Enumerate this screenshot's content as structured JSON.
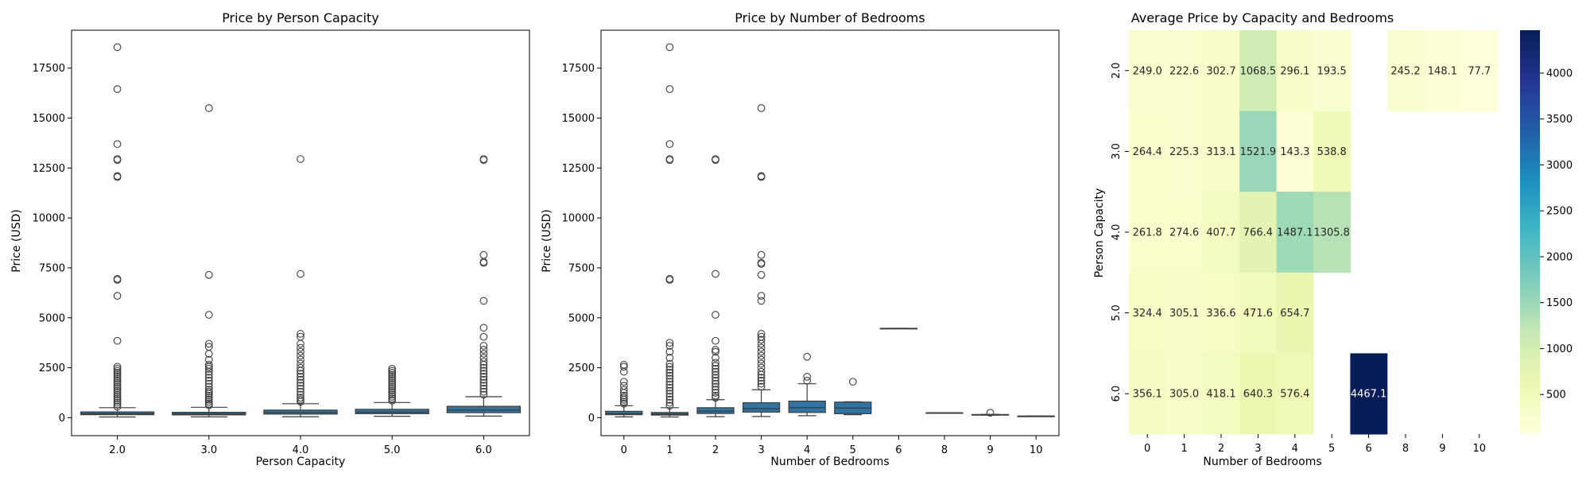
{
  "chart_data": [
    {
      "type": "box",
      "title": "Price by Person Capacity",
      "xlabel": "Person Capacity",
      "ylabel": "Price (USD)",
      "ylim": [
        -900,
        19400
      ],
      "yticks": [
        0,
        2500,
        5000,
        7500,
        10000,
        12500,
        15000,
        17500
      ],
      "categories": [
        "2.0",
        "3.0",
        "4.0",
        "5.0",
        "6.0"
      ],
      "box_color": "#3274a1",
      "boxes": [
        {
          "q1": 150,
          "median": 200,
          "q3": 290,
          "whisker_low": 35,
          "whisker_high": 500,
          "outliers": [
            18550,
            16450,
            13700,
            12950,
            12900,
            12100,
            12050,
            6950,
            6900,
            6100,
            3850,
            2550,
            2450,
            2350,
            2250,
            2150,
            2050,
            1950,
            1850,
            1750,
            1650,
            1550,
            1450,
            1350,
            1250,
            1150,
            1050,
            950,
            850,
            750,
            650,
            550
          ]
        },
        {
          "q1": 140,
          "median": 190,
          "q3": 270,
          "whisker_low": 40,
          "whisker_high": 520,
          "outliers": [
            15500,
            7150,
            5150,
            3700,
            3550,
            3200,
            2900,
            2650,
            2550,
            2450,
            2300,
            2150,
            2000,
            1850,
            1700,
            1550,
            1400,
            1300,
            1200,
            1100,
            1000,
            900,
            800,
            700,
            620
          ]
        },
        {
          "q1": 180,
          "median": 260,
          "q3": 380,
          "whisker_low": 45,
          "whisker_high": 700,
          "outliers": [
            12950,
            7200,
            4200,
            4050,
            3700,
            3500,
            3300,
            3100,
            2900,
            2700,
            2500,
            2350,
            2200,
            2050,
            1900,
            1750,
            1600,
            1450,
            1300,
            1150,
            1000,
            900,
            800
          ]
        },
        {
          "q1": 200,
          "median": 280,
          "q3": 420,
          "whisker_low": 70,
          "whisker_high": 760,
          "outliers": [
            2450,
            2350,
            2250,
            2150,
            2050,
            1950,
            1850,
            1750,
            1650,
            1550,
            1450,
            1350,
            1250,
            1150,
            1050,
            950,
            850
          ]
        },
        {
          "q1": 250,
          "median": 380,
          "q3": 570,
          "whisker_low": 80,
          "whisker_high": 1050,
          "outliers": [
            12950,
            12900,
            8150,
            7800,
            7750,
            5850,
            4500,
            4050,
            3600,
            3400,
            3200,
            3000,
            2800,
            2650,
            2500,
            2350,
            2200,
            2050,
            1900,
            1750,
            1600,
            1450,
            1300,
            1150
          ]
        }
      ]
    },
    {
      "type": "box",
      "title": "Price by Number of Bedrooms",
      "xlabel": "Number of Bedrooms",
      "ylabel": "Price (USD)",
      "ylim": [
        -900,
        19400
      ],
      "yticks": [
        0,
        2500,
        5000,
        7500,
        10000,
        12500,
        15000,
        17500
      ],
      "categories": [
        "0",
        "1",
        "2",
        "3",
        "4",
        "5",
        "6",
        "8",
        "9",
        "10"
      ],
      "box_color": "#3274a1",
      "boxes": [
        {
          "q1": 150,
          "median": 200,
          "q3": 320,
          "whisker_low": 40,
          "whisker_high": 600,
          "outliers": [
            2650,
            2550,
            2300,
            1800,
            1600,
            1400,
            1250,
            1100,
            1000,
            900,
            800,
            700
          ]
        },
        {
          "q1": 130,
          "median": 180,
          "q3": 260,
          "whisker_low": 35,
          "whisker_high": 500,
          "outliers": [
            18550,
            16450,
            13700,
            12950,
            12900,
            6950,
            6900,
            3750,
            3600,
            3300,
            3000,
            2700,
            2550,
            2400,
            2250,
            2100,
            1950,
            1800,
            1650,
            1500,
            1350,
            1200,
            1050,
            900,
            750,
            600
          ]
        },
        {
          "q1": 210,
          "median": 320,
          "q3": 500,
          "whisker_low": 50,
          "whisker_high": 900,
          "outliers": [
            12950,
            12900,
            7200,
            5150,
            3850,
            3400,
            3300,
            3000,
            2750,
            2600,
            2450,
            2300,
            2150,
            2000,
            1850,
            1700,
            1550,
            1400,
            1250,
            1100,
            1000
          ]
        },
        {
          "q1": 280,
          "median": 450,
          "q3": 750,
          "whisker_low": 60,
          "whisker_high": 1400,
          "outliers": [
            15500,
            12100,
            12050,
            8150,
            7750,
            7700,
            7150,
            6100,
            5850,
            4200,
            4050,
            3900,
            3700,
            3500,
            3300,
            3100,
            2900,
            2700,
            2500,
            2300,
            2150,
            2000,
            1850,
            1700,
            1550
          ]
        },
        {
          "q1": 260,
          "median": 500,
          "q3": 830,
          "whisker_low": 100,
          "whisker_high": 1700,
          "outliers": [
            3050,
            2050,
            1850
          ]
        },
        {
          "q1": 200,
          "median": 480,
          "q3": 780,
          "whisker_low": 150,
          "whisker_high": 800,
          "outliers": [
            1800
          ]
        },
        {
          "q1": 4460,
          "median": 4467,
          "q3": 4475,
          "whisker_low": 4460,
          "whisker_high": 4475,
          "outliers": []
        },
        {
          "q1": 240,
          "median": 245,
          "q3": 250,
          "whisker_low": 240,
          "whisker_high": 250,
          "outliers": []
        },
        {
          "q1": 135,
          "median": 148,
          "q3": 160,
          "whisker_low": 130,
          "whisker_high": 165,
          "outliers": [
            245
          ]
        },
        {
          "q1": 72,
          "median": 77,
          "q3": 82,
          "whisker_low": 70,
          "whisker_high": 85,
          "outliers": []
        }
      ]
    },
    {
      "type": "heatmap",
      "title": "Average Price by Capacity and Bedrooms",
      "xlabel": "Number of Bedrooms",
      "ylabel": "Person Capacity",
      "x_categories": [
        "0",
        "1",
        "2",
        "3",
        "4",
        "5",
        "6",
        "8",
        "9",
        "10"
      ],
      "y_categories": [
        "2.0",
        "3.0",
        "4.0",
        "5.0",
        "6.0"
      ],
      "values": [
        [
          249.0,
          222.6,
          302.7,
          1068.5,
          296.1,
          193.5,
          null,
          245.2,
          148.1,
          77.7
        ],
        [
          264.4,
          225.3,
          313.1,
          1521.9,
          143.3,
          538.8,
          null,
          null,
          null,
          null
        ],
        [
          261.8,
          274.6,
          407.7,
          766.4,
          1487.1,
          1305.8,
          null,
          null,
          null,
          null
        ],
        [
          324.4,
          305.1,
          336.6,
          471.6,
          654.7,
          null,
          null,
          null,
          null,
          null
        ],
        [
          356.1,
          305.0,
          418.1,
          640.3,
          576.4,
          null,
          4467.1,
          null,
          null,
          null
        ]
      ],
      "labels": [
        [
          "249.0",
          "222.6",
          "302.7",
          "1068.5",
          "296.1",
          "193.5",
          "",
          "245.2",
          "148.1",
          "77.7"
        ],
        [
          "264.4",
          "225.3",
          "313.1",
          "1521.9",
          "143.3",
          "538.8",
          "",
          "",
          "",
          ""
        ],
        [
          "261.8",
          "274.6",
          "407.7",
          "766.4",
          "1487.1",
          "1305.8",
          "",
          "",
          "",
          ""
        ],
        [
          "324.4",
          "305.1",
          "336.6",
          "471.6",
          "654.7",
          "",
          "",
          "",
          "",
          ""
        ],
        [
          "356.1",
          "305.0",
          "418.1",
          "640.3",
          "576.4",
          "",
          "4467.1",
          "",
          "",
          ""
        ]
      ],
      "vmin": 77.7,
      "vmax": 4467.1,
      "colormap": "YlGnBu",
      "colorbar_ticks": [
        500,
        1000,
        1500,
        2000,
        2500,
        3000,
        3500,
        4000
      ],
      "colorbar_tick_labels": [
        "500",
        "1000",
        "1500",
        "2000",
        "2500",
        "3000",
        "3500",
        "4000"
      ]
    }
  ]
}
